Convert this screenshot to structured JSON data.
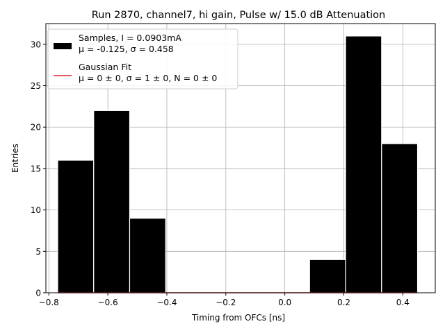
{
  "chart_data": {
    "type": "bar",
    "title": "Run 2870, channel7, hi gain, Pulse w/ 15.0 dB Attenuation",
    "xlabel": "Timing from OFCs [ns]",
    "ylabel": "Entries",
    "xlim": [
      -0.81,
      0.51
    ],
    "ylim": [
      0,
      32.5
    ],
    "grid": true,
    "x_ticks": [
      -0.8,
      -0.6,
      -0.4,
      -0.2,
      0.0,
      0.2,
      0.4
    ],
    "x_tick_labels": [
      "−0.8",
      "−0.6",
      "−0.4",
      "−0.2",
      "0.0",
      "0.2",
      "0.4"
    ],
    "y_ticks": [
      0,
      5,
      10,
      15,
      20,
      25,
      30
    ],
    "y_tick_labels": [
      "0",
      "5",
      "10",
      "15",
      "20",
      "25",
      "30"
    ],
    "bin_edges": [
      -0.77,
      -0.648,
      -0.526,
      -0.404,
      -0.282,
      -0.16,
      -0.038,
      0.084,
      0.206,
      0.328,
      0.45
    ],
    "values": [
      16,
      22,
      9,
      0,
      0,
      0,
      0,
      4,
      31,
      18
    ],
    "fit_line": {
      "x": [
        -0.77,
        0.45
      ],
      "y": [
        0,
        0
      ],
      "color": "#d62728"
    },
    "bar_color": "#000000",
    "legend": {
      "placement": "upper-left",
      "entries": [
        {
          "lines": [
            "Samples, I = 0.0903mA",
            "μ = -0.125, σ = 0.458"
          ],
          "kind": "patch",
          "color": "#000000"
        },
        {
          "lines": [
            "Gaussian Fit",
            "μ = 0 ± 0, σ = 1 ± 0, N = 0 ± 0"
          ],
          "kind": "line",
          "color": "#d62728"
        }
      ]
    }
  }
}
